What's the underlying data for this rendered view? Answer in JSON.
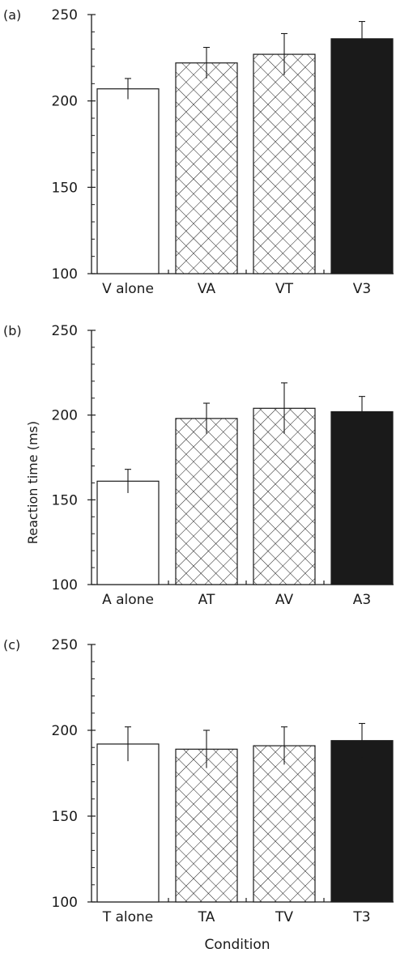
{
  "figure": {
    "ylabel": "Reaction time (ms)",
    "xlabel": "Condition"
  },
  "chart_data": [
    {
      "type": "bar",
      "panel_label": "(a)",
      "categories": [
        "V alone",
        "VA",
        "VT",
        "V3"
      ],
      "values": [
        207,
        222,
        227,
        236
      ],
      "errors": [
        6,
        9,
        12,
        10
      ],
      "fills": [
        "white",
        "crosshatch",
        "crosshatch",
        "black"
      ],
      "ylim": [
        100,
        250
      ],
      "yticks": [
        100,
        150,
        200,
        250
      ],
      "ytick_labels": [
        "100",
        "150",
        "200",
        "250"
      ],
      "minor_tick_step": 10
    },
    {
      "type": "bar",
      "panel_label": "(b)",
      "categories": [
        "A alone",
        "AT",
        "AV",
        "A3"
      ],
      "values": [
        161,
        198,
        204,
        202
      ],
      "errors": [
        7,
        9,
        15,
        9
      ],
      "fills": [
        "white",
        "crosshatch",
        "crosshatch",
        "black"
      ],
      "ylim": [
        100,
        250
      ],
      "yticks": [
        100,
        150,
        200,
        250
      ],
      "ytick_labels": [
        "100",
        "150",
        "200",
        "250"
      ],
      "minor_tick_step": 10
    },
    {
      "type": "bar",
      "panel_label": "(c)",
      "categories": [
        "T alone",
        "TA",
        "TV",
        "T3"
      ],
      "values": [
        192,
        189,
        191,
        194
      ],
      "errors": [
        10,
        11,
        11,
        10
      ],
      "fills": [
        "white",
        "crosshatch",
        "crosshatch",
        "black"
      ],
      "ylim": [
        100,
        250
      ],
      "yticks": [
        100,
        150,
        200,
        250
      ],
      "ytick_labels": [
        "100",
        "150",
        "200",
        "250"
      ],
      "minor_tick_step": 10
    }
  ],
  "colors": {
    "ink": "#1a1a1a",
    "bar_black": "#1a1a1a",
    "bar_white": "#ffffff",
    "hatch_bg": "#ffffff"
  }
}
